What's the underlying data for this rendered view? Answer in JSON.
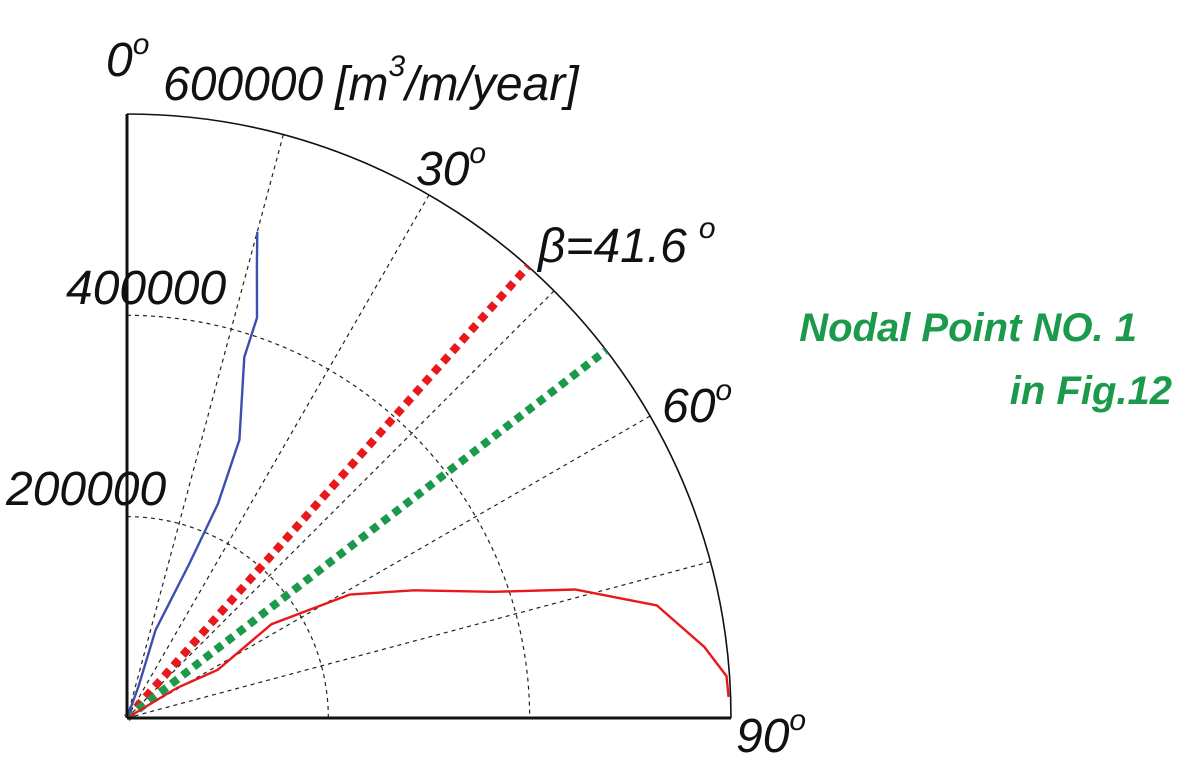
{
  "chart_data": {
    "type": "polar",
    "radial_axis": {
      "max": 600000,
      "ticks": [
        200000,
        400000
      ],
      "max_label": "600000",
      "unit_open": "[m",
      "unit_sup": "3",
      "unit_close": "/m/year]"
    },
    "angular_axis": {
      "range_deg": [
        0,
        90
      ],
      "zero_direction": "up",
      "direction": "clockwise",
      "tick_degrees": [
        0,
        30,
        60,
        90
      ],
      "tick_labels": [
        "0",
        "30",
        "60",
        "90"
      ],
      "degree_symbol": "o"
    },
    "grid": {
      "radial_rings": [
        200000,
        400000
      ],
      "spokes_deg": [
        15,
        30,
        45,
        60,
        75
      ]
    },
    "series": [
      {
        "name": "blue curve",
        "color": "#3a4fb0",
        "points": [
          {
            "theta": 0,
            "r": 0
          },
          {
            "theta": 20,
            "r": 33000
          },
          {
            "theta": 18,
            "r": 92000
          },
          {
            "theta": 22,
            "r": 165000
          },
          {
            "theta": 23,
            "r": 231000
          },
          {
            "theta": 22,
            "r": 298000
          },
          {
            "theta": 18,
            "r": 377000
          },
          {
            "theta": 18,
            "r": 418000
          },
          {
            "theta": 16,
            "r": 468000
          },
          {
            "theta": 15,
            "r": 500000
          }
        ]
      },
      {
        "name": "red curve",
        "color": "#e8191c",
        "points": [
          {
            "theta": 0,
            "r": 0
          },
          {
            "theta": 59,
            "r": 58000
          },
          {
            "theta": 62,
            "r": 102000
          },
          {
            "theta": 57,
            "r": 171000
          },
          {
            "theta": 61,
            "r": 253000
          },
          {
            "theta": 66,
            "r": 312000
          },
          {
            "theta": 71,
            "r": 385000
          },
          {
            "theta": 74,
            "r": 463000
          },
          {
            "theta": 78,
            "r": 538000
          },
          {
            "theta": 83,
            "r": 578000
          },
          {
            "theta": 86,
            "r": 597000
          },
          {
            "theta": 88,
            "r": 598000
          }
        ]
      }
    ],
    "direction_lines": [
      {
        "name": "beta",
        "angle_deg": 41.6,
        "color": "#e8191c"
      },
      {
        "name": "nodal",
        "angle_deg": 52.5,
        "color": "#1a9a4a"
      }
    ],
    "annotations": {
      "beta_symbol": "β",
      "beta_value": "=41.6",
      "beta_degree": "o",
      "nodal_line1": "Nodal Point NO. 1",
      "nodal_line2": "in Fig.12",
      "nodal_color": "#1a9a4a"
    }
  }
}
